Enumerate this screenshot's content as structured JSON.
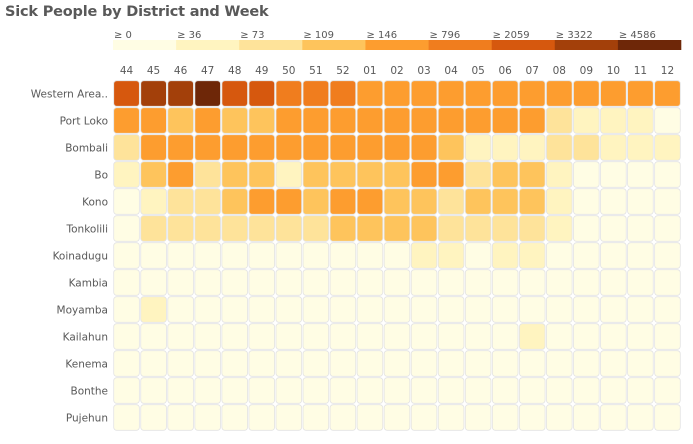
{
  "chart_data": {
    "type": "heatmap",
    "title": "Sick People by District and Week",
    "xlabel": "",
    "ylabel": "",
    "x": [
      "44",
      "45",
      "46",
      "47",
      "48",
      "49",
      "50",
      "51",
      "52",
      "01",
      "02",
      "03",
      "04",
      "05",
      "06",
      "07",
      "08",
      "09",
      "10",
      "11",
      "12"
    ],
    "y": [
      "Western Area..",
      "Port Loko",
      "Bombali",
      "Bo",
      "Kono",
      "Tonkolili",
      "Koinadugu",
      "Kambia",
      "Moyamba",
      "Kailahun",
      "Kenema",
      "Bonthe",
      "Pujehun"
    ],
    "legend": {
      "position": "top",
      "bins": [
        {
          "label": "≥ 0",
          "color": "#fffde4"
        },
        {
          "label": "≥ 36",
          "color": "#fff4c0"
        },
        {
          "label": "≥ 73",
          "color": "#fee39a"
        },
        {
          "label": "≥ 109",
          "color": "#fec45c"
        },
        {
          "label": "≥ 146",
          "color": "#fd9d2f"
        },
        {
          "label": "≥ 796",
          "color": "#f07d1e"
        },
        {
          "label": "≥ 2059",
          "color": "#d6580e"
        },
        {
          "label": "≥ 3322",
          "color": "#a3400a"
        },
        {
          "label": "≥ 4586",
          "color": "#6e2708"
        }
      ]
    },
    "bin_matrix": [
      [
        6,
        7,
        7,
        8,
        6,
        6,
        5,
        5,
        5,
        4,
        4,
        4,
        4,
        4,
        4,
        4,
        4,
        4,
        4,
        4,
        4
      ],
      [
        4,
        4,
        3,
        4,
        3,
        3,
        4,
        4,
        4,
        4,
        4,
        4,
        4,
        4,
        4,
        4,
        2,
        1,
        1,
        1,
        0
      ],
      [
        2,
        4,
        4,
        4,
        4,
        4,
        4,
        4,
        4,
        4,
        4,
        4,
        3,
        1,
        1,
        1,
        2,
        2,
        1,
        1,
        1
      ],
      [
        1,
        3,
        4,
        2,
        3,
        3,
        1,
        3,
        3,
        3,
        3,
        4,
        4,
        2,
        3,
        3,
        1,
        0,
        0,
        0,
        0
      ],
      [
        0,
        1,
        2,
        2,
        3,
        4,
        4,
        3,
        4,
        4,
        3,
        3,
        2,
        3,
        3,
        3,
        1,
        0,
        0,
        0,
        0
      ],
      [
        0,
        2,
        2,
        2,
        2,
        2,
        2,
        2,
        3,
        3,
        3,
        3,
        2,
        2,
        2,
        2,
        1,
        0,
        0,
        0,
        0
      ],
      [
        0,
        0,
        0,
        0,
        0,
        0,
        0,
        0,
        0,
        0,
        0,
        1,
        1,
        0,
        1,
        1,
        0,
        0,
        0,
        0,
        0
      ],
      [
        0,
        0,
        0,
        0,
        0,
        0,
        0,
        0,
        0,
        0,
        0,
        0,
        0,
        0,
        0,
        0,
        0,
        0,
        0,
        0,
        0
      ],
      [
        0,
        1,
        0,
        0,
        0,
        0,
        0,
        0,
        0,
        0,
        0,
        0,
        0,
        0,
        0,
        0,
        0,
        0,
        0,
        0,
        0
      ],
      [
        0,
        0,
        0,
        0,
        0,
        0,
        0,
        0,
        0,
        0,
        0,
        0,
        0,
        0,
        0,
        1,
        0,
        0,
        0,
        0,
        0
      ],
      [
        0,
        0,
        0,
        0,
        0,
        0,
        0,
        0,
        0,
        0,
        0,
        0,
        0,
        0,
        0,
        0,
        0,
        0,
        0,
        0,
        0
      ],
      [
        0,
        0,
        0,
        0,
        0,
        0,
        0,
        0,
        0,
        0,
        0,
        0,
        0,
        0,
        0,
        0,
        0,
        0,
        0,
        0,
        0
      ],
      [
        0,
        0,
        0,
        0,
        0,
        0,
        0,
        0,
        0,
        0,
        0,
        0,
        0,
        0,
        0,
        0,
        0,
        0,
        0,
        0,
        0
      ]
    ],
    "cell_border_color": "#e3e3e3"
  }
}
